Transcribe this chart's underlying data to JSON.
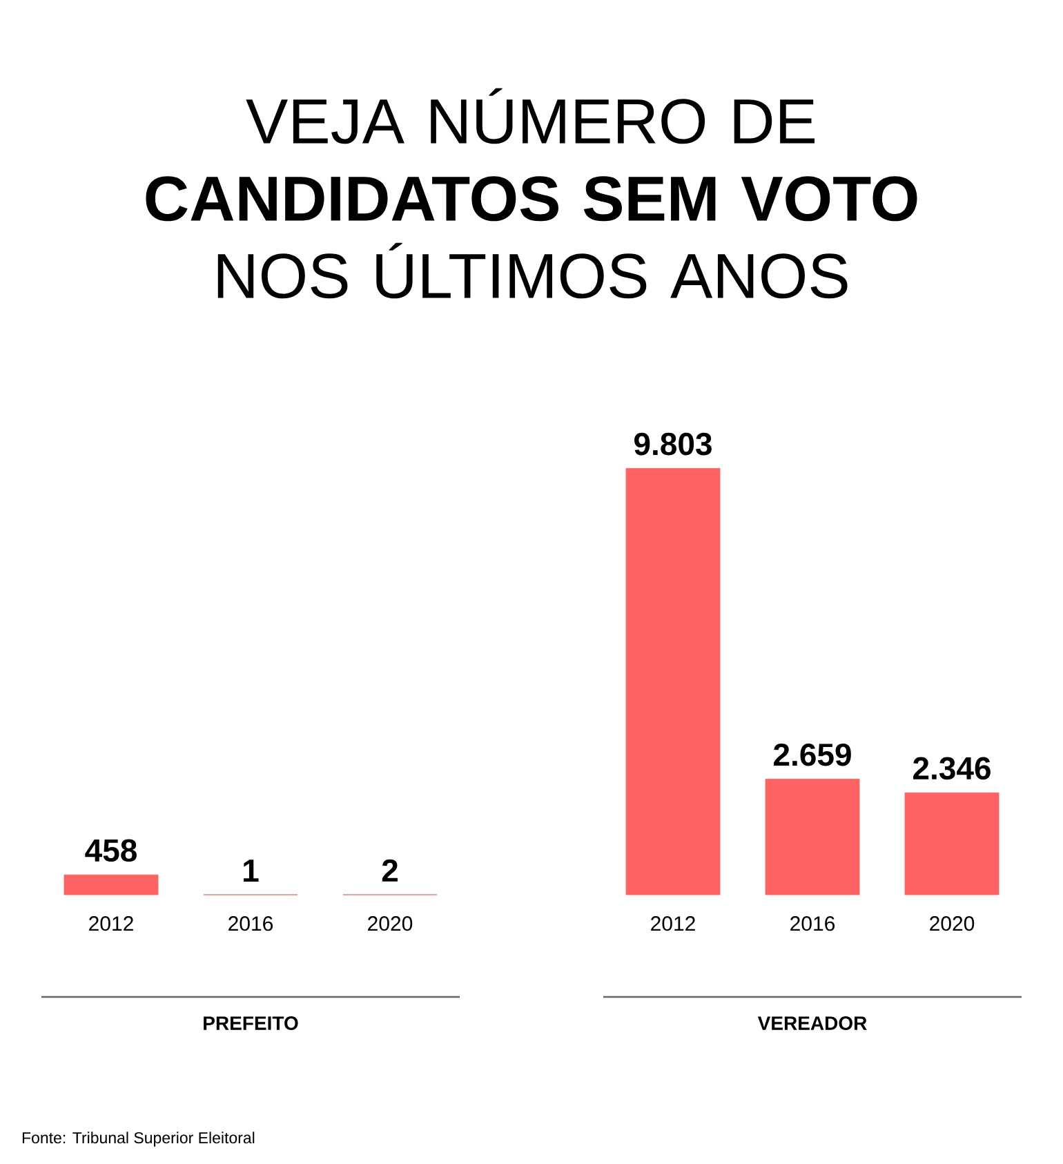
{
  "chart_data": [
    {
      "type": "bar",
      "title": "VEJA NÚMERO DE **CANDIDATOS SEM VOTO** NOS ÚLTIMOS ANOS",
      "xlabel": "PREFEITO",
      "categories": [
        "2012",
        "2016",
        "2020"
      ],
      "values": [
        458,
        1,
        2
      ],
      "value_labels": [
        "458",
        "1",
        "2"
      ],
      "color": "#ff6262",
      "annotations": [
        "Fonte: Tribunal Superior Eleitoral"
      ]
    },
    {
      "type": "bar",
      "xlabel": "VEREADOR",
      "categories": [
        "2012",
        "2016",
        "2020"
      ],
      "values": [
        9803,
        2659,
        2346
      ],
      "value_labels": [
        "9.803",
        "2.659",
        "2.346"
      ],
      "color": "#ff6262"
    }
  ]
}
